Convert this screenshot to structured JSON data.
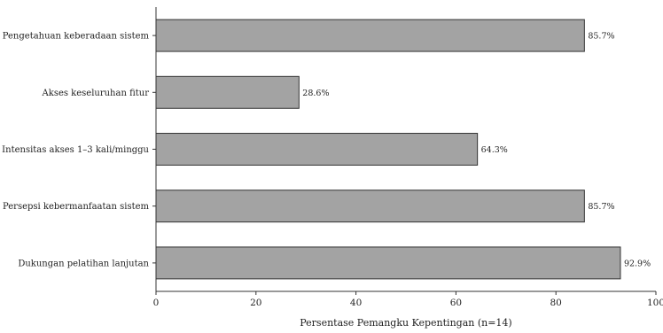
{
  "chart_data": {
    "type": "bar",
    "orientation": "horizontal",
    "categories": [
      "Pengetahuan keberadaan sistem",
      "Akses keseluruhan fitur",
      "Intensitas akses 1–3 kali/minggu",
      "Persepsi kebermanfaatan sistem",
      "Dukungan pelatihan lanjutan"
    ],
    "values": [
      85.7,
      28.6,
      64.3,
      85.7,
      92.9
    ],
    "value_labels": [
      "85.7%",
      "28.6%",
      "64.3%",
      "85.7%",
      "92.9%"
    ],
    "xlabel": "Persentase Pemangku Kepentingan (n=14)",
    "xlim": [
      0,
      100
    ],
    "xticks": [
      "0",
      "20",
      "40",
      "60",
      "80",
      "100"
    ],
    "grid": false,
    "legend": "none",
    "colors": {
      "bar_fill": "#a3a3a3",
      "bar_edge": "#333333",
      "axis": "#333333"
    }
  }
}
